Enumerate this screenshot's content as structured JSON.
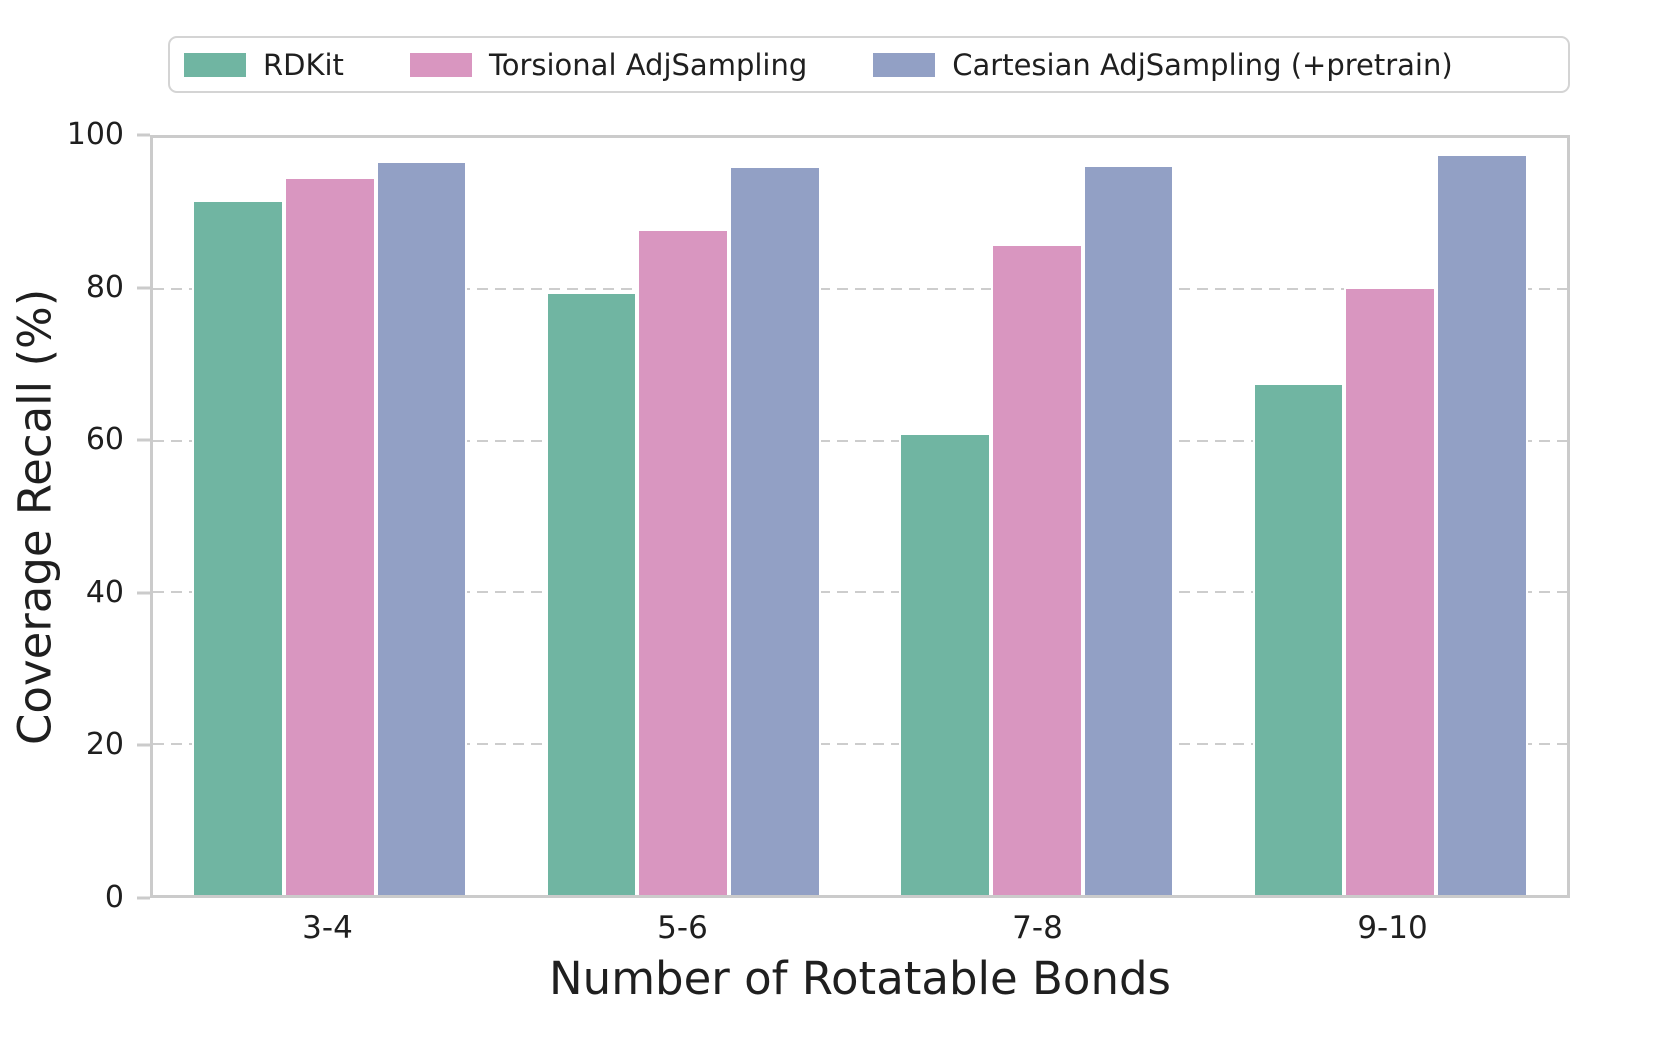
{
  "chart_data": {
    "type": "bar",
    "title": "",
    "xlabel": "Number of Rotatable Bonds",
    "ylabel": "Coverage Recall (%)",
    "categories": [
      "3-4",
      "5-6",
      "7-8",
      "9-10"
    ],
    "series": [
      {
        "name": "RDKit",
        "color": "#70b5a2",
        "values": [
          91.8,
          79.7,
          61.0,
          67.6
        ]
      },
      {
        "name": "Torsional AdjSampling",
        "color": "#d996c0",
        "values": [
          94.8,
          88.0,
          86.0,
          80.3
        ]
      },
      {
        "name": "Cartesian AdjSampling (+pretrain)",
        "color": "#92a0c5",
        "values": [
          97.0,
          96.3,
          96.4,
          97.9
        ]
      }
    ],
    "ylim": [
      0,
      100
    ],
    "yticks": [
      0,
      20,
      40,
      60,
      80,
      100
    ],
    "grid": "horizontal-dashed",
    "legend_position": "top"
  },
  "style_colors": {
    "spine": "#cbcbcb",
    "gridline": "#cdcdcd",
    "text": "#1f1f1f",
    "background": "#ffffff",
    "legend_border": "#d4d4d4"
  }
}
